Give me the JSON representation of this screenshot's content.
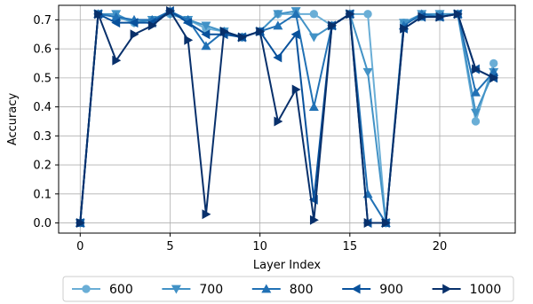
{
  "chart_data": {
    "type": "line",
    "title": "",
    "xlabel": "Layer Index",
    "ylabel": "Accuracy",
    "xlim": [
      -1.2,
      24.2
    ],
    "ylim": [
      -0.035,
      0.75
    ],
    "xticks": [
      0,
      5,
      10,
      15,
      20
    ],
    "xtick_labels": [
      "0",
      "5",
      "10",
      "15",
      "20"
    ],
    "yticks": [
      0.0,
      0.1,
      0.2,
      0.3,
      0.4,
      0.5,
      0.6,
      0.7
    ],
    "ytick_labels": [
      "0.0",
      "0.1",
      "0.2",
      "0.3",
      "0.4",
      "0.5",
      "0.6",
      "0.7"
    ],
    "grid": true,
    "legend_position": "bottom",
    "x": [
      0,
      1,
      2,
      3,
      4,
      5,
      6,
      7,
      8,
      9,
      10,
      11,
      12,
      13,
      14,
      15,
      16,
      17,
      18,
      19,
      20,
      21,
      22,
      23
    ],
    "series": [
      {
        "name": "600",
        "color": "#6aaed6",
        "marker": "circle",
        "values": [
          0.0,
          0.72,
          0.71,
          0.69,
          0.7,
          0.72,
          0.7,
          0.67,
          0.66,
          0.64,
          0.66,
          0.72,
          0.72,
          0.72,
          0.68,
          0.72,
          0.72,
          0.0,
          0.69,
          0.71,
          0.72,
          0.72,
          0.35,
          0.55
        ]
      },
      {
        "name": "700",
        "color": "#4292c6",
        "marker": "triangle-down",
        "values": [
          0.0,
          0.72,
          0.72,
          0.69,
          0.7,
          0.72,
          0.7,
          0.68,
          0.66,
          0.64,
          0.66,
          0.72,
          0.73,
          0.64,
          0.68,
          0.72,
          0.52,
          0.0,
          0.69,
          0.72,
          0.72,
          0.72,
          0.38,
          0.52
        ]
      },
      {
        "name": "800",
        "color": "#2171b5",
        "marker": "triangle-up",
        "values": [
          0.0,
          0.72,
          0.71,
          0.7,
          0.7,
          0.73,
          0.7,
          0.61,
          0.66,
          0.64,
          0.66,
          0.68,
          0.72,
          0.4,
          0.68,
          0.72,
          0.1,
          0.0,
          0.68,
          0.72,
          0.71,
          0.72,
          0.45,
          0.52
        ]
      },
      {
        "name": "900",
        "color": "#08519c",
        "marker": "triangle-left",
        "values": [
          0.0,
          0.72,
          0.69,
          0.69,
          0.69,
          0.73,
          0.69,
          0.65,
          0.65,
          0.64,
          0.66,
          0.57,
          0.65,
          0.08,
          0.68,
          0.72,
          0.0,
          0.0,
          0.67,
          0.71,
          0.71,
          0.72,
          0.53,
          0.5
        ]
      },
      {
        "name": "1000",
        "color": "#08306b",
        "marker": "triangle-right",
        "values": [
          0.0,
          0.72,
          0.56,
          0.65,
          0.68,
          0.73,
          0.63,
          0.03,
          0.66,
          0.64,
          0.66,
          0.35,
          0.46,
          0.01,
          0.68,
          0.72,
          0.0,
          0.0,
          0.67,
          0.71,
          0.71,
          0.72,
          0.53,
          0.5
        ]
      }
    ]
  }
}
